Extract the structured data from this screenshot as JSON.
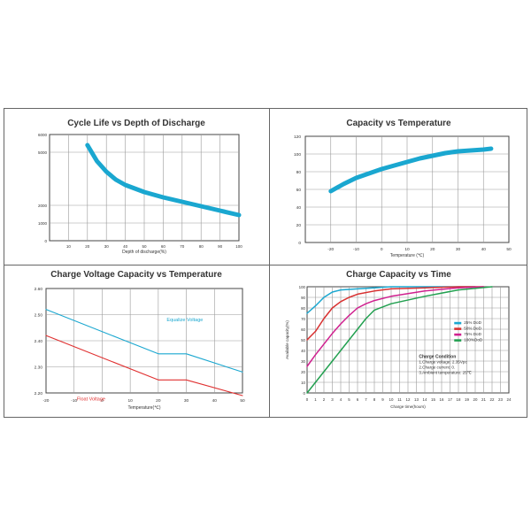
{
  "chart_data": [
    {
      "type": "line",
      "title": "Cycle Life vs Depth of Discharge",
      "xlabel": "Depth of discharge(%)",
      "ylabel": "",
      "xlim": [
        0,
        100
      ],
      "ylim": [
        0,
        6000
      ],
      "xticks": [
        "10",
        "20",
        "30",
        "40",
        "50",
        "60",
        "70",
        "80",
        "90",
        "100"
      ],
      "yticks": [
        {
          "v": 6000,
          "label": "6000"
        },
        {
          "v": 5000,
          "label": "5000"
        },
        {
          "v": 2000,
          "label": "2000"
        },
        {
          "v": 1000,
          "label": "1000"
        },
        {
          "v": 0,
          "label": "0"
        }
      ],
      "grid": true,
      "color": "#1aa7d0",
      "series": [
        {
          "x": [
            20,
            25,
            30,
            35,
            40,
            50,
            60,
            70,
            80,
            90,
            100
          ],
          "y": [
            5400,
            4500,
            3900,
            3450,
            3150,
            2750,
            2450,
            2200,
            1950,
            1700,
            1450
          ]
        }
      ]
    },
    {
      "type": "line",
      "title": "Capacity vs Temperature",
      "xlabel": "Temperature (℃)",
      "ylabel": "",
      "xlim": [
        -30,
        50
      ],
      "ylim": [
        0,
        120
      ],
      "xticks": [
        "-20",
        "-10",
        "0",
        "10",
        "20",
        "30",
        "40",
        "50"
      ],
      "yticks": [
        "0",
        "20",
        "40",
        "60",
        "80",
        "100",
        "120"
      ],
      "grid": true,
      "color": "#1aa7d0",
      "series": [
        {
          "x": [
            -20,
            -15,
            -10,
            -5,
            0,
            5,
            10,
            15,
            20,
            25,
            30,
            35,
            40,
            43
          ],
          "y": [
            58,
            66,
            73,
            78,
            83,
            87,
            91,
            95,
            98,
            101,
            103,
            104,
            105,
            106
          ]
        }
      ]
    },
    {
      "type": "line",
      "title": "Charge Voltage Capacity vs Temperature",
      "xlabel": "Temperature(℃)",
      "ylabel": "",
      "xlim": [
        -20,
        50
      ],
      "ylim": [
        2.2,
        2.6
      ],
      "xticks": [
        "-20",
        "-10",
        "0",
        "10",
        "20",
        "30",
        "40",
        "50"
      ],
      "yticks": [
        "2.20",
        "2.30",
        "2.40",
        "2.50",
        "2.60"
      ],
      "grid": true,
      "series": [
        {
          "name": "Equalize Voltage",
          "color": "#1aa7d0",
          "x": [
            -20,
            20,
            30,
            50
          ],
          "y": [
            2.52,
            2.35,
            2.35,
            2.28
          ]
        },
        {
          "name": "Float Voltage",
          "color": "#e03030",
          "x": [
            -20,
            20,
            30,
            50
          ],
          "y": [
            2.42,
            2.25,
            2.25,
            2.19
          ]
        }
      ],
      "labels": [
        {
          "text": "Equalize Voltage",
          "color": "#1aa7d0"
        },
        {
          "text": "Float Voltage",
          "color": "#e03030"
        }
      ]
    },
    {
      "type": "line",
      "title": "Charge Capacity vs Time",
      "xlabel": "Charge time(hours)",
      "ylabel": "Available capacity(%)",
      "xlim": [
        0,
        24
      ],
      "ylim": [
        0,
        100
      ],
      "xticks": [
        "0",
        "1",
        "2",
        "3",
        "4",
        "5",
        "6",
        "7",
        "8",
        "9",
        "10",
        "11",
        "12",
        "13",
        "14",
        "15",
        "16",
        "17",
        "18",
        "19",
        "20",
        "21",
        "22",
        "23",
        "24"
      ],
      "yticks": [
        "0",
        "10",
        "20",
        "30",
        "40",
        "50",
        "60",
        "70",
        "80",
        "90",
        "100"
      ],
      "grid": true,
      "legend": "right",
      "series": [
        {
          "name": "25%  DoD",
          "color": "#1aa7d0",
          "x": [
            0,
            1,
            2,
            3,
            4,
            6,
            8,
            10,
            14,
            20
          ],
          "y": [
            75,
            82,
            90,
            95,
            97,
            98,
            99,
            100,
            100,
            100
          ]
        },
        {
          "name": "50%  DoD",
          "color": "#d83030",
          "x": [
            0,
            1,
            2,
            3,
            4,
            5,
            6,
            8,
            10,
            14,
            18,
            21
          ],
          "y": [
            50,
            58,
            70,
            80,
            86,
            90,
            93,
            96,
            98,
            99,
            100,
            100
          ]
        },
        {
          "name": "75%  DoD",
          "color": "#d0208f",
          "x": [
            0,
            1,
            2,
            3,
            4,
            5,
            6,
            7,
            8,
            10,
            14,
            18,
            21
          ],
          "y": [
            25,
            36,
            46,
            56,
            65,
            73,
            80,
            84,
            87,
            91,
            96,
            99,
            100
          ]
        },
        {
          "name": "100%DoD",
          "color": "#22a050",
          "x": [
            0,
            1,
            2,
            3,
            4,
            5,
            6,
            7,
            8,
            10,
            14,
            18,
            22
          ],
          "y": [
            0,
            10,
            20,
            30,
            40,
            50,
            60,
            70,
            78,
            84,
            91,
            97,
            100
          ]
        }
      ],
      "condition": {
        "title": "Charge Condition",
        "lines": [
          "1.Charge voltage: 2.35Vpc",
          "2.Charge current: 0.",
          "3.Ambient temperature: 25℃"
        ]
      }
    }
  ]
}
